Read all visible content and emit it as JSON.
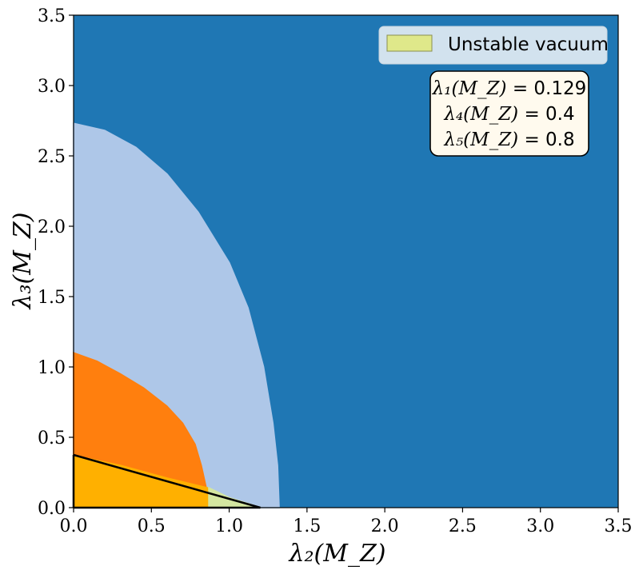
{
  "chart_data": {
    "type": "area",
    "title": "",
    "xlabel": "λ₂(M_Z)",
    "ylabel": "λ₃(M_Z)",
    "xlim": [
      0.0,
      3.5
    ],
    "ylim": [
      0.0,
      3.5
    ],
    "x_ticks": [
      "0.0",
      "0.5",
      "1.0",
      "1.5",
      "2.0",
      "2.5",
      "3.0",
      "3.5"
    ],
    "y_ticks": [
      "0.0",
      "0.5",
      "1.0",
      "1.5",
      "2.0",
      "2.5",
      "3.0",
      "3.5"
    ],
    "grid": false,
    "background_color": "#1f77b4",
    "regions": [
      {
        "color": "#aec7e8",
        "boundary": [
          [
            0.0,
            2.73
          ],
          [
            0.2,
            2.68
          ],
          [
            0.4,
            2.56
          ],
          [
            0.6,
            2.37
          ],
          [
            0.8,
            2.1
          ],
          [
            1.0,
            1.74
          ],
          [
            1.12,
            1.42
          ],
          [
            1.22,
            1.0
          ],
          [
            1.28,
            0.6
          ],
          [
            1.31,
            0.3
          ],
          [
            1.32,
            0.0
          ]
        ]
      },
      {
        "color": "#ff7f0e",
        "boundary": [
          [
            0.0,
            1.1
          ],
          [
            0.15,
            1.04
          ],
          [
            0.3,
            0.95
          ],
          [
            0.45,
            0.85
          ],
          [
            0.6,
            0.72
          ],
          [
            0.7,
            0.6
          ],
          [
            0.78,
            0.45
          ],
          [
            0.82,
            0.3
          ],
          [
            0.86,
            0.1
          ],
          [
            0.87,
            0.0
          ]
        ]
      },
      {
        "color": "#ffb000",
        "boundary": [
          [
            0.0,
            0.37
          ],
          [
            0.3,
            0.3
          ],
          [
            0.6,
            0.21
          ],
          [
            0.86,
            0.14
          ],
          [
            0.87,
            0.0
          ]
        ]
      },
      {
        "color": "#d4e6a0",
        "boundary": [
          [
            0.87,
            0.14
          ],
          [
            1.0,
            0.07
          ],
          [
            1.2,
            0.0
          ],
          [
            0.87,
            0.0
          ]
        ]
      }
    ],
    "stability_line": [
      [
        0.0,
        0.375
      ],
      [
        1.2,
        0.0
      ]
    ],
    "legend": {
      "placement": "top-right",
      "entries": [
        {
          "label": "Unstable vacuum",
          "color": "#dfe88a"
        }
      ]
    },
    "annotations": [
      {
        "lhs": "λ₁(M_Z) = ",
        "value": "0.129"
      },
      {
        "lhs": "λ₄(M_Z) = ",
        "value": "0.4"
      },
      {
        "lhs": "λ₅(M_Z) = ",
        "value": "0.8"
      }
    ]
  }
}
